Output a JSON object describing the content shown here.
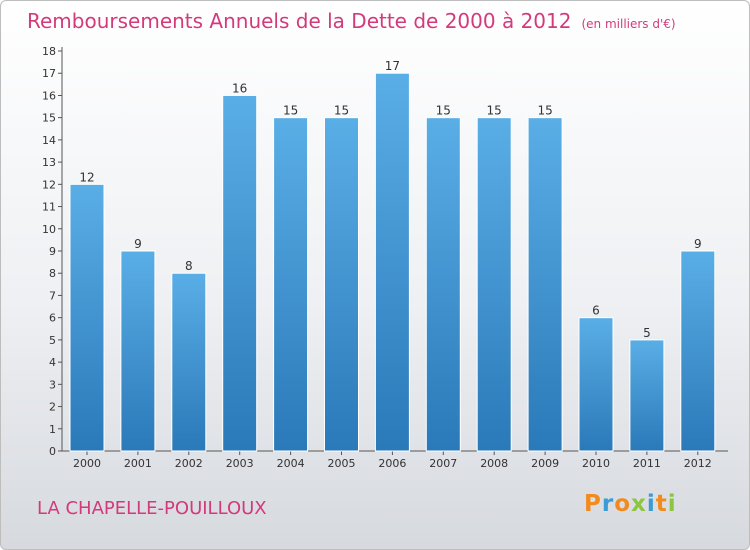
{
  "header": {
    "title": "Remboursements Annuels de la Dette de 2000 à 2012",
    "unit": "(en milliers d'€)"
  },
  "footer": {
    "place": "LA CHAPELLE-POUILLOUX",
    "logo": "Proxiti"
  },
  "colors": {
    "title": "#d33a7c",
    "bar_top": "#5aaee6",
    "bar_bottom": "#2a79b9",
    "logo": [
      "#f28b1e",
      "#3a9bd6",
      "#f28b1e",
      "#8cc63f",
      "#3a9bd6",
      "#f28b1e",
      "#8cc63f"
    ]
  },
  "chart_data": {
    "type": "bar",
    "title": "Remboursements Annuels de la Dette de 2000 à 2012",
    "unit": "(en milliers d'€)",
    "categories": [
      "2000",
      "2001",
      "2002",
      "2003",
      "2004",
      "2005",
      "2006",
      "2007",
      "2008",
      "2009",
      "2010",
      "2011",
      "2012"
    ],
    "values": [
      12,
      9,
      8,
      16,
      15,
      15,
      17,
      15,
      15,
      15,
      6,
      5,
      9
    ],
    "ylim": [
      0,
      18
    ],
    "yticks": [
      0,
      1,
      2,
      3,
      4,
      5,
      6,
      7,
      8,
      9,
      10,
      11,
      12,
      13,
      14,
      15,
      16,
      17,
      18
    ],
    "grid": false,
    "data_labels": true
  }
}
